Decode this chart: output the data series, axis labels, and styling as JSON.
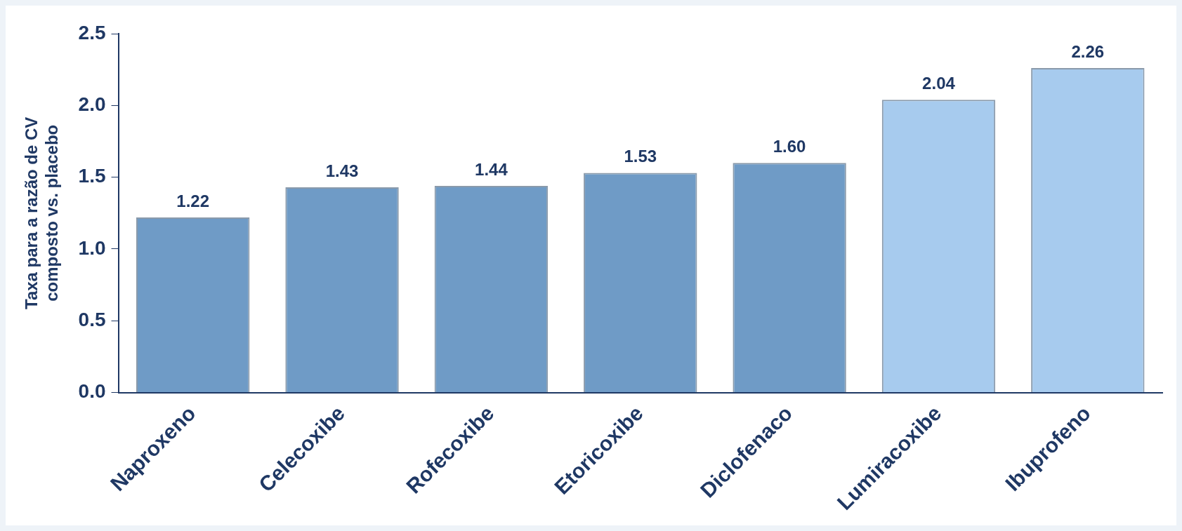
{
  "chart_data": {
    "type": "bar",
    "ylabel": "Taxa para a razão de CV\ncomposto vs. placebo",
    "categories": [
      "Naproxeno",
      "Celecoxibe",
      "Rofecoxibe",
      "Etoricoxibe",
      "Diclofenaco",
      "Lumiracoxibe",
      "Ibuprofeno"
    ],
    "values": [
      1.22,
      1.43,
      1.44,
      1.53,
      1.6,
      2.04,
      2.26
    ],
    "value_labels": [
      "1.22",
      "1.43",
      "1.44",
      "1.53",
      "1.60",
      "2.04",
      "2.26"
    ],
    "colors": [
      "#6f9bc6",
      "#6f9bc6",
      "#6f9bc6",
      "#6f9bc6",
      "#6f9bc6",
      "#a7cbee",
      "#a7cbee"
    ],
    "ylim": [
      0,
      2.5
    ],
    "yticks": [
      {
        "value": 0,
        "label": "0.0"
      },
      {
        "value": 0.5,
        "label": "0.5"
      },
      {
        "value": 1,
        "label": "1.0"
      },
      {
        "value": 1.5,
        "label": "1.5"
      },
      {
        "value": 2,
        "label": "2.0"
      },
      {
        "value": 2.5,
        "label": "2.5"
      }
    ],
    "grid": false,
    "legend": false
  }
}
